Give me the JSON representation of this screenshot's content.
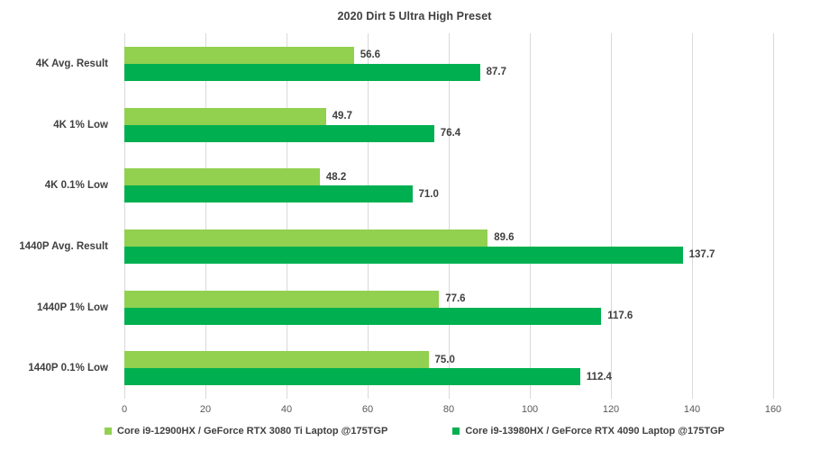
{
  "title": "2020 Dirt 5 Ultra High Preset",
  "colors": {
    "series1": "#92D050",
    "series2": "#00B050",
    "gridline": "#d9d9d9",
    "text": "#404040",
    "tick_text": "#595959",
    "background": "#ffffff"
  },
  "chart_data": {
    "type": "bar",
    "orientation": "horizontal",
    "title": "2020 Dirt 5 Ultra High Preset",
    "categories": [
      "4K Avg. Result",
      "4K 1% Low",
      "4K 0.1% Low",
      "1440P Avg. Result",
      "1440P 1% Low",
      "1440P 0.1% Low"
    ],
    "series": [
      {
        "name": "Core i9-12900HX / GeForce RTX 3080 Ti Laptop @175TGP",
        "color": "#92D050",
        "values": [
          56.6,
          49.7,
          48.2,
          89.6,
          77.6,
          75.0
        ],
        "labels": [
          "56.6",
          "49.7",
          "48.2",
          "89.6",
          "77.6",
          "75.0"
        ]
      },
      {
        "name": "Core i9-13980HX  / GeForce RTX 4090 Laptop @175TGP",
        "color": "#00B050",
        "values": [
          87.7,
          76.4,
          71.0,
          137.7,
          117.6,
          112.4
        ],
        "labels": [
          "87.7",
          "76.4",
          "71.0",
          "137.7",
          "117.6",
          "112.4"
        ]
      }
    ],
    "xlabel": "",
    "ylabel": "",
    "xlim": [
      0,
      160
    ],
    "x_ticks": [
      0,
      20,
      40,
      60,
      80,
      100,
      120,
      140,
      160
    ],
    "grid": "vertical",
    "legend_position": "bottom"
  }
}
